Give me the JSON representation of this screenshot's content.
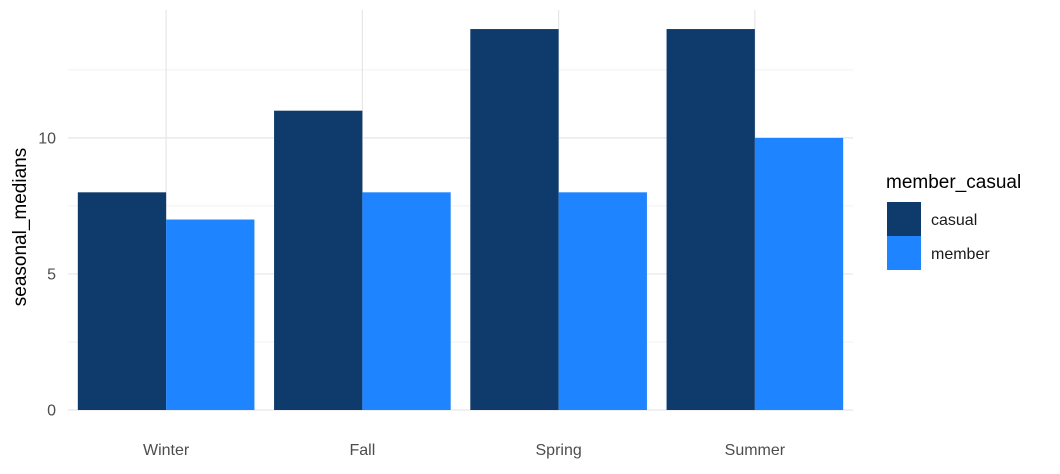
{
  "chart_data": {
    "type": "bar",
    "title": "",
    "xlabel": "",
    "ylabel": "seasonal_medians",
    "categories": [
      "Winter",
      "Fall",
      "Spring",
      "Summer"
    ],
    "series": [
      {
        "name": "casual",
        "values": [
          8,
          11,
          14,
          14
        ],
        "color": "#0f3b6c"
      },
      {
        "name": "member",
        "values": [
          7,
          8,
          8,
          10
        ],
        "color": "#1f84ff"
      }
    ],
    "ylim": [
      0,
      14.7
    ],
    "y_ticks": [
      0,
      5,
      10
    ],
    "grid": true,
    "legend": {
      "title": "member_casual",
      "placement": "right"
    }
  }
}
